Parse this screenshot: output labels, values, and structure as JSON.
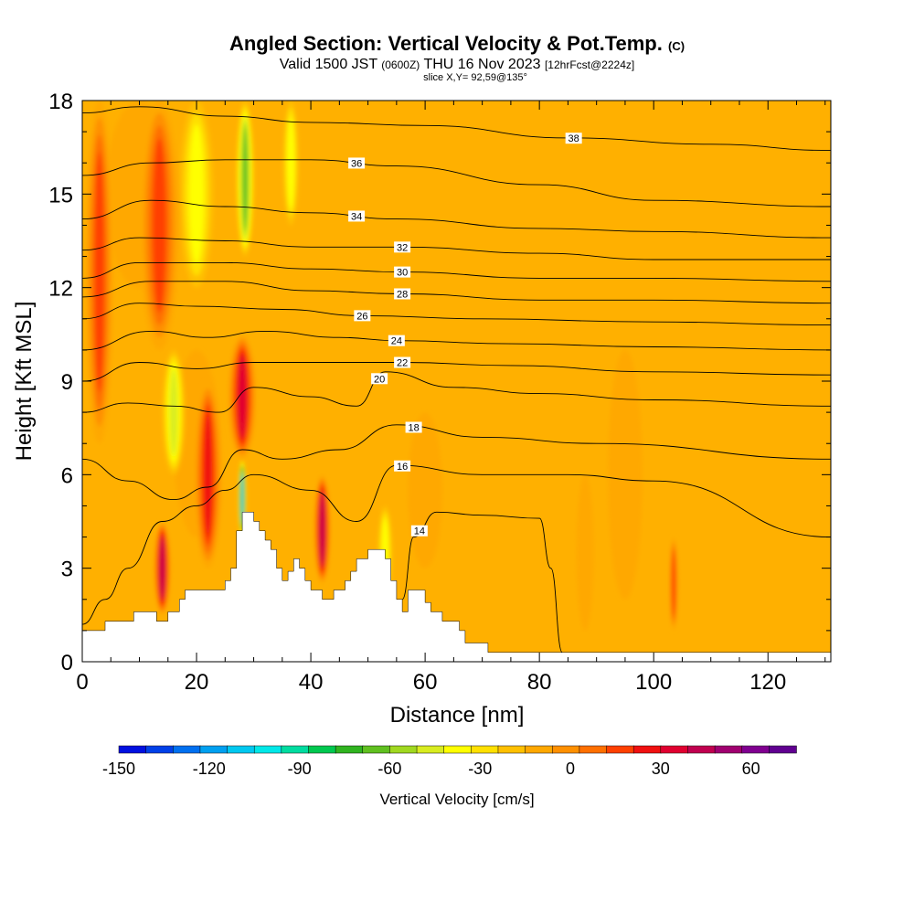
{
  "header": {
    "title": "Angled Section: Vertical Velocity & Pot.Temp.",
    "title_suffix": "(C)",
    "valid_prefix": "Valid 1500 JST",
    "valid_utc": "(0600Z)",
    "valid_date": "THU 16 Nov 2023",
    "forecast_info": "[12hrFcst@2224z]",
    "slice_info": "slice X,Y= 92,59@135°"
  },
  "chart_data": {
    "type": "heatmap",
    "xlabel": "Distance [nm]",
    "ylabel": "Height [Kft MSL]",
    "xlim": [
      0,
      131
    ],
    "ylim": [
      0,
      18
    ],
    "xticks": [
      "0",
      "20",
      "40",
      "60",
      "80",
      "100",
      "120"
    ],
    "yticks": [
      "0",
      "3",
      "6",
      "9",
      "12",
      "15",
      "18"
    ],
    "colorbar": {
      "title": "Vertical Velocity [cm/s]",
      "range": [
        -150,
        75
      ],
      "step": 10,
      "tick_labels": [
        "-150",
        "-120",
        "-90",
        "-60",
        "-30",
        "0",
        "30",
        "60"
      ],
      "colors": [
        "#0010e0",
        "#0040e8",
        "#0070f0",
        "#00a0f0",
        "#00c8f0",
        "#00e8e8",
        "#00dca0",
        "#00c850",
        "#30b420",
        "#60c020",
        "#a0d820",
        "#d8ec20",
        "#ffff00",
        "#ffe000",
        "#ffc000",
        "#ffa800",
        "#ff9000",
        "#ff7000",
        "#ff4000",
        "#f01010",
        "#e00030",
        "#c00050",
        "#a00070",
        "#800090",
        "#600090"
      ],
      "background_color": "#ffb000"
    },
    "terrain_kft": [
      [
        0,
        1
      ],
      [
        4,
        1
      ],
      [
        4,
        1.3
      ],
      [
        9,
        1.3
      ],
      [
        9,
        1.6
      ],
      [
        13,
        1.6
      ],
      [
        13,
        1.3
      ],
      [
        15,
        1.3
      ],
      [
        15,
        1.6
      ],
      [
        17,
        1.6
      ],
      [
        17,
        2
      ],
      [
        18,
        2
      ],
      [
        18,
        2.3
      ],
      [
        25,
        2.3
      ],
      [
        25,
        2.6
      ],
      [
        26,
        2.6
      ],
      [
        26,
        3
      ],
      [
        27,
        3
      ],
      [
        27,
        4.2
      ],
      [
        28,
        4.2
      ],
      [
        28,
        4.8
      ],
      [
        30,
        4.8
      ],
      [
        30,
        4.5
      ],
      [
        31,
        4.5
      ],
      [
        31,
        4.2
      ],
      [
        32,
        4.2
      ],
      [
        32,
        3.9
      ],
      [
        33,
        3.9
      ],
      [
        33,
        3.6
      ],
      [
        34,
        3.6
      ],
      [
        34,
        3.3
      ],
      [
        34,
        3
      ],
      [
        35,
        3
      ],
      [
        35,
        2.6
      ],
      [
        36,
        2.6
      ],
      [
        36,
        2.9
      ],
      [
        37,
        2.9
      ],
      [
        37,
        3.3
      ],
      [
        38,
        3.3
      ],
      [
        38,
        3
      ],
      [
        39,
        3
      ],
      [
        39,
        2.6
      ],
      [
        40,
        2.6
      ],
      [
        40,
        2.3
      ],
      [
        42,
        2.3
      ],
      [
        42,
        2
      ],
      [
        44,
        2
      ],
      [
        44,
        2.3
      ],
      [
        46,
        2.3
      ],
      [
        46,
        2.6
      ],
      [
        47,
        2.6
      ],
      [
        47,
        2.9
      ],
      [
        48,
        2.9
      ],
      [
        48,
        3.3
      ],
      [
        50,
        3.3
      ],
      [
        50,
        3.6
      ],
      [
        53,
        3.6
      ],
      [
        53,
        3.3
      ],
      [
        54,
        3.3
      ],
      [
        54,
        2.6
      ],
      [
        55,
        2.6
      ],
      [
        55,
        2
      ],
      [
        56,
        2
      ],
      [
        56,
        1.6
      ],
      [
        57,
        1.6
      ],
      [
        57,
        2.3
      ],
      [
        60,
        2.3
      ],
      [
        60,
        1.9
      ],
      [
        61,
        1.9
      ],
      [
        61,
        1.6
      ],
      [
        63,
        1.6
      ],
      [
        63,
        1.3
      ],
      [
        66,
        1.3
      ],
      [
        66,
        1
      ],
      [
        67,
        1
      ],
      [
        67,
        0.6
      ],
      [
        71,
        0.6
      ],
      [
        71,
        0.3
      ],
      [
        131,
        0.3
      ]
    ],
    "updraft_bands": [
      {
        "x": 3,
        "y1": 7,
        "y2": 18,
        "w": 2.5,
        "value": 45
      },
      {
        "x": 13.5,
        "y1": 10,
        "y2": 18,
        "w": 3.5,
        "value": 40
      },
      {
        "x": 28,
        "y1": 6.5,
        "y2": 10.5,
        "w": 2.5,
        "value": 65
      },
      {
        "x": 22,
        "y1": 3,
        "y2": 9,
        "w": 2.5,
        "value": 50
      },
      {
        "x": 14,
        "y1": 1.5,
        "y2": 4.5,
        "w": 1.5,
        "value": 70
      },
      {
        "x": 42,
        "y1": 2.5,
        "y2": 6,
        "w": 1.5,
        "value": 70
      },
      {
        "x": 103.5,
        "y1": 1,
        "y2": 4,
        "w": 0.8,
        "value": 40
      },
      {
        "x": 88,
        "y1": 1,
        "y2": 6,
        "w": 1.5,
        "value": 15
      }
    ],
    "downdraft_bands": [
      {
        "x": 20,
        "y1": 12,
        "y2": 18,
        "w": 3,
        "value": -35
      },
      {
        "x": 28.5,
        "y1": 13,
        "y2": 18,
        "w": 1.6,
        "value": -65
      },
      {
        "x": 36.5,
        "y1": 14,
        "y2": 18,
        "w": 1.4,
        "value": -30
      },
      {
        "x": 16,
        "y1": 6,
        "y2": 10,
        "w": 2,
        "value": -45
      },
      {
        "x": 28,
        "y1": 4,
        "y2": 6.5,
        "w": 0.7,
        "value": -110
      },
      {
        "x": 53,
        "y1": 2,
        "y2": 5,
        "w": 1.3,
        "value": -30
      }
    ],
    "isentropes": [
      {
        "label": "14",
        "label_x": 59,
        "points": [
          [
            56,
            2
          ],
          [
            58,
            4
          ],
          [
            62,
            4.8
          ],
          [
            70,
            4.7
          ],
          [
            80,
            4.6
          ],
          [
            82,
            3
          ],
          [
            84,
            0.3
          ]
        ]
      },
      {
        "label": "16",
        "label_x": 56,
        "points": [
          [
            0,
            1.2
          ],
          [
            4,
            2
          ],
          [
            8,
            3
          ],
          [
            14,
            4.5
          ],
          [
            20,
            5
          ],
          [
            25,
            5.5
          ],
          [
            30,
            6
          ],
          [
            40,
            5.5
          ],
          [
            48,
            4.5
          ],
          [
            55,
            6.3
          ],
          [
            70,
            6
          ],
          [
            85,
            6
          ],
          [
            100,
            5.8
          ],
          [
            131,
            4
          ]
        ]
      },
      {
        "label": "18",
        "label_x": 58,
        "points": [
          [
            0,
            6.5
          ],
          [
            8,
            5.8
          ],
          [
            16,
            5.2
          ],
          [
            22,
            5.6
          ],
          [
            28,
            6.8
          ],
          [
            35,
            6.5
          ],
          [
            45,
            6.8
          ],
          [
            55,
            7.6
          ],
          [
            70,
            7.2
          ],
          [
            90,
            7
          ],
          [
            131,
            6.5
          ]
        ]
      },
      {
        "label": "20",
        "label_x": 52,
        "points": [
          [
            0,
            8
          ],
          [
            8,
            8.3
          ],
          [
            16,
            8.2
          ],
          [
            24,
            8
          ],
          [
            30,
            8.8
          ],
          [
            40,
            8.5
          ],
          [
            48,
            8.2
          ],
          [
            53,
            9.3
          ],
          [
            65,
            8.8
          ],
          [
            80,
            8.6
          ],
          [
            100,
            8.4
          ],
          [
            131,
            8.2
          ]
        ]
      },
      {
        "label": "22",
        "label_x": 56,
        "points": [
          [
            0,
            9
          ],
          [
            10,
            9.6
          ],
          [
            20,
            9.4
          ],
          [
            30,
            9.6
          ],
          [
            45,
            9.6
          ],
          [
            56,
            9.6
          ],
          [
            75,
            9.5
          ],
          [
            100,
            9.3
          ],
          [
            131,
            9.2
          ]
        ]
      },
      {
        "label": "24",
        "label_x": 55,
        "points": [
          [
            0,
            10
          ],
          [
            12,
            10.6
          ],
          [
            22,
            10.4
          ],
          [
            32,
            10.6
          ],
          [
            45,
            10.4
          ],
          [
            55,
            10.3
          ],
          [
            75,
            10.2
          ],
          [
            100,
            10.1
          ],
          [
            131,
            10
          ]
        ]
      },
      {
        "label": "26",
        "label_x": 49,
        "points": [
          [
            0,
            11
          ],
          [
            10,
            11.5
          ],
          [
            20,
            11.4
          ],
          [
            35,
            11.3
          ],
          [
            49,
            11.1
          ],
          [
            70,
            11
          ],
          [
            100,
            10.9
          ],
          [
            131,
            10.8
          ]
        ]
      },
      {
        "label": "28",
        "label_x": 56,
        "points": [
          [
            0,
            11.7
          ],
          [
            12,
            12.2
          ],
          [
            25,
            12.2
          ],
          [
            40,
            11.9
          ],
          [
            56,
            11.8
          ],
          [
            80,
            11.6
          ],
          [
            100,
            11.6
          ],
          [
            131,
            11.5
          ]
        ]
      },
      {
        "label": "30",
        "label_x": 56,
        "points": [
          [
            0,
            12.3
          ],
          [
            10,
            12.8
          ],
          [
            25,
            12.8
          ],
          [
            40,
            12.6
          ],
          [
            56,
            12.5
          ],
          [
            80,
            12.3
          ],
          [
            100,
            12.3
          ],
          [
            131,
            12.2
          ]
        ]
      },
      {
        "label": "32",
        "label_x": 56,
        "points": [
          [
            0,
            13.2
          ],
          [
            10,
            13.6
          ],
          [
            25,
            13.5
          ],
          [
            40,
            13.3
          ],
          [
            56,
            13.3
          ],
          [
            80,
            13.1
          ],
          [
            100,
            12.9
          ],
          [
            131,
            12.9
          ]
        ]
      },
      {
        "label": "34",
        "label_x": 48,
        "points": [
          [
            0,
            14.2
          ],
          [
            12,
            14.8
          ],
          [
            25,
            14.6
          ],
          [
            40,
            14.4
          ],
          [
            55,
            14.2
          ],
          [
            80,
            13.9
          ],
          [
            100,
            13.8
          ],
          [
            131,
            13.6
          ]
        ]
      },
      {
        "label": "36",
        "label_x": 48,
        "points": [
          [
            0,
            15.6
          ],
          [
            12,
            16
          ],
          [
            25,
            16.1
          ],
          [
            40,
            16.1
          ],
          [
            55,
            15.9
          ],
          [
            80,
            15.3
          ],
          [
            100,
            14.8
          ],
          [
            131,
            14.6
          ]
        ]
      },
      {
        "label": "38",
        "label_x": 86,
        "points": [
          [
            0,
            17.6
          ],
          [
            10,
            17.8
          ],
          [
            25,
            17.5
          ],
          [
            40,
            17.3
          ],
          [
            60,
            17.2
          ],
          [
            85,
            16.8
          ],
          [
            110,
            16.6
          ],
          [
            131,
            16.4
          ]
        ]
      }
    ]
  }
}
